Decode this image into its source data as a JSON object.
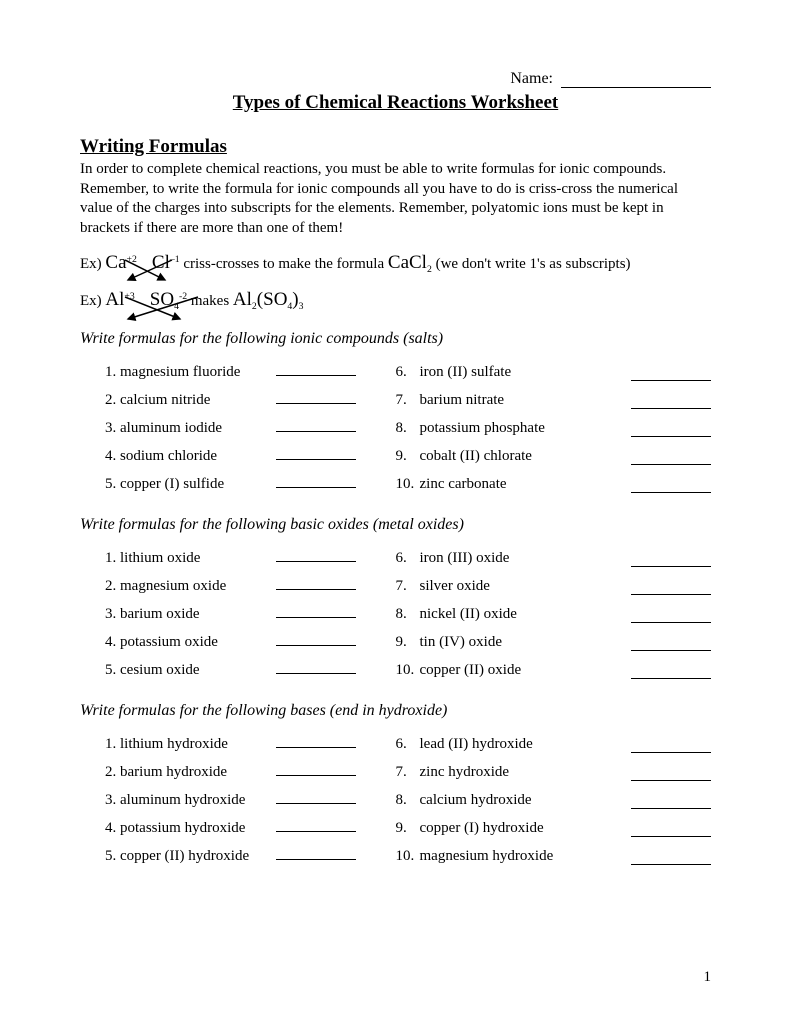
{
  "name_label": "Name:",
  "title": "Types of Chemical Reactions Worksheet",
  "section_heading": "Writing Formulas",
  "intro": "In order to complete chemical reactions, you must be able to write formulas for ionic compounds.  Remember, to write the formula for ionic compounds all you have to do is criss-cross the numerical value of the charges into subscripts for the elements.  Remember, polyatomic ions must be kept in brackets if there are more than one of them!",
  "ex1": {
    "prefix": "Ex)",
    "ion1": "Ca",
    "ion1_charge": "+2",
    "ion2": "Cl",
    "ion2_charge": "–1",
    "mid": " criss-crosses to make the formula ",
    "result_pre": "CaCl",
    "result_sub": "2",
    "tail": " (we don't write 1's as subscripts)"
  },
  "ex2": {
    "prefix": "Ex)",
    "ion1": "Al",
    "ion1_charge": "+3",
    "ion2": "SO",
    "ion2_sub": "4",
    "ion2_charge": "-2",
    "mid": "  makes ",
    "result": "Al",
    "r_sub1": "2",
    "r_mid": "(SO",
    "r_sub2": "4",
    "r_close": ")",
    "r_sub3": "3"
  },
  "groups": [
    {
      "heading": "Write formulas for the following ionic compounds (salts)",
      "left": [
        "magnesium fluoride",
        "calcium nitride",
        "aluminum iodide",
        "sodium chloride",
        "copper (I) sulfide"
      ],
      "right": [
        "iron (II) sulfate",
        "barium nitrate",
        "potassium phosphate",
        "cobalt (II) chlorate",
        "zinc carbonate"
      ]
    },
    {
      "heading": "Write formulas for the following basic oxides (metal oxides)",
      "left": [
        "lithium oxide",
        "magnesium oxide",
        "barium oxide",
        "potassium oxide",
        "cesium oxide"
      ],
      "right": [
        "iron (III) oxide",
        "silver oxide",
        "nickel (II) oxide",
        "tin (IV) oxide",
        "copper (II) oxide"
      ]
    },
    {
      "heading": "Write formulas for the following bases (end in hydroxide)",
      "left": [
        "lithium hydroxide",
        "barium hydroxide",
        "aluminum hydroxide",
        "potassium hydroxide",
        "copper (II) hydroxide"
      ],
      "right": [
        "lead (II) hydroxide",
        "zinc hydroxide",
        "calcium hydroxide",
        "copper (I) hydroxide",
        "magnesium hydroxide"
      ]
    }
  ],
  "page_number": "1"
}
